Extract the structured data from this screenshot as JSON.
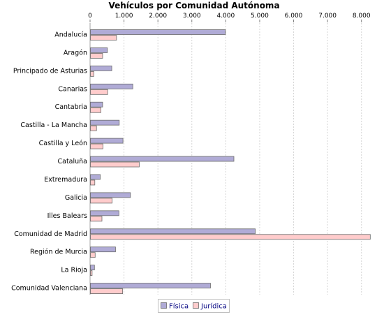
{
  "chart_data": {
    "type": "bar",
    "orientation": "horizontal",
    "title": "Vehículos por Comunidad Autónoma",
    "categories": [
      "Andalucía",
      "Aragón",
      "Principado de Asturias",
      "Canarias",
      "Cantabria",
      "Castilla - La Mancha",
      "Castilla y León",
      "Cataluña",
      "Extremadura",
      "Galicia",
      "Illes Balears",
      "Comunidad de Madrid",
      "Región de Murcia",
      "La Rioja",
      "Comunidad Valenciana"
    ],
    "series": [
      {
        "name": "Física",
        "color": "#B0ABD6",
        "values": [
          4000,
          520,
          650,
          1270,
          380,
          870,
          980,
          4250,
          310,
          1200,
          860,
          4880,
          760,
          140,
          3560
        ]
      },
      {
        "name": "Jurídica",
        "color": "#FFCCCC",
        "values": [
          790,
          380,
          120,
          530,
          330,
          200,
          390,
          1460,
          150,
          660,
          360,
          8270,
          160,
          70,
          970
        ]
      }
    ],
    "xlim": [
      0,
      8500
    ],
    "xticks": [
      0,
      1000,
      2000,
      3000,
      4000,
      5000,
      6000,
      7000,
      8000
    ],
    "xtick_labels": [
      "0",
      "1.000",
      "2.000",
      "3.000",
      "4.000",
      "5.000",
      "6.000",
      "7.000",
      "8.000"
    ],
    "x_axis_position": "top",
    "grid": "vertical dashed",
    "legend_position": "bottom-center"
  }
}
